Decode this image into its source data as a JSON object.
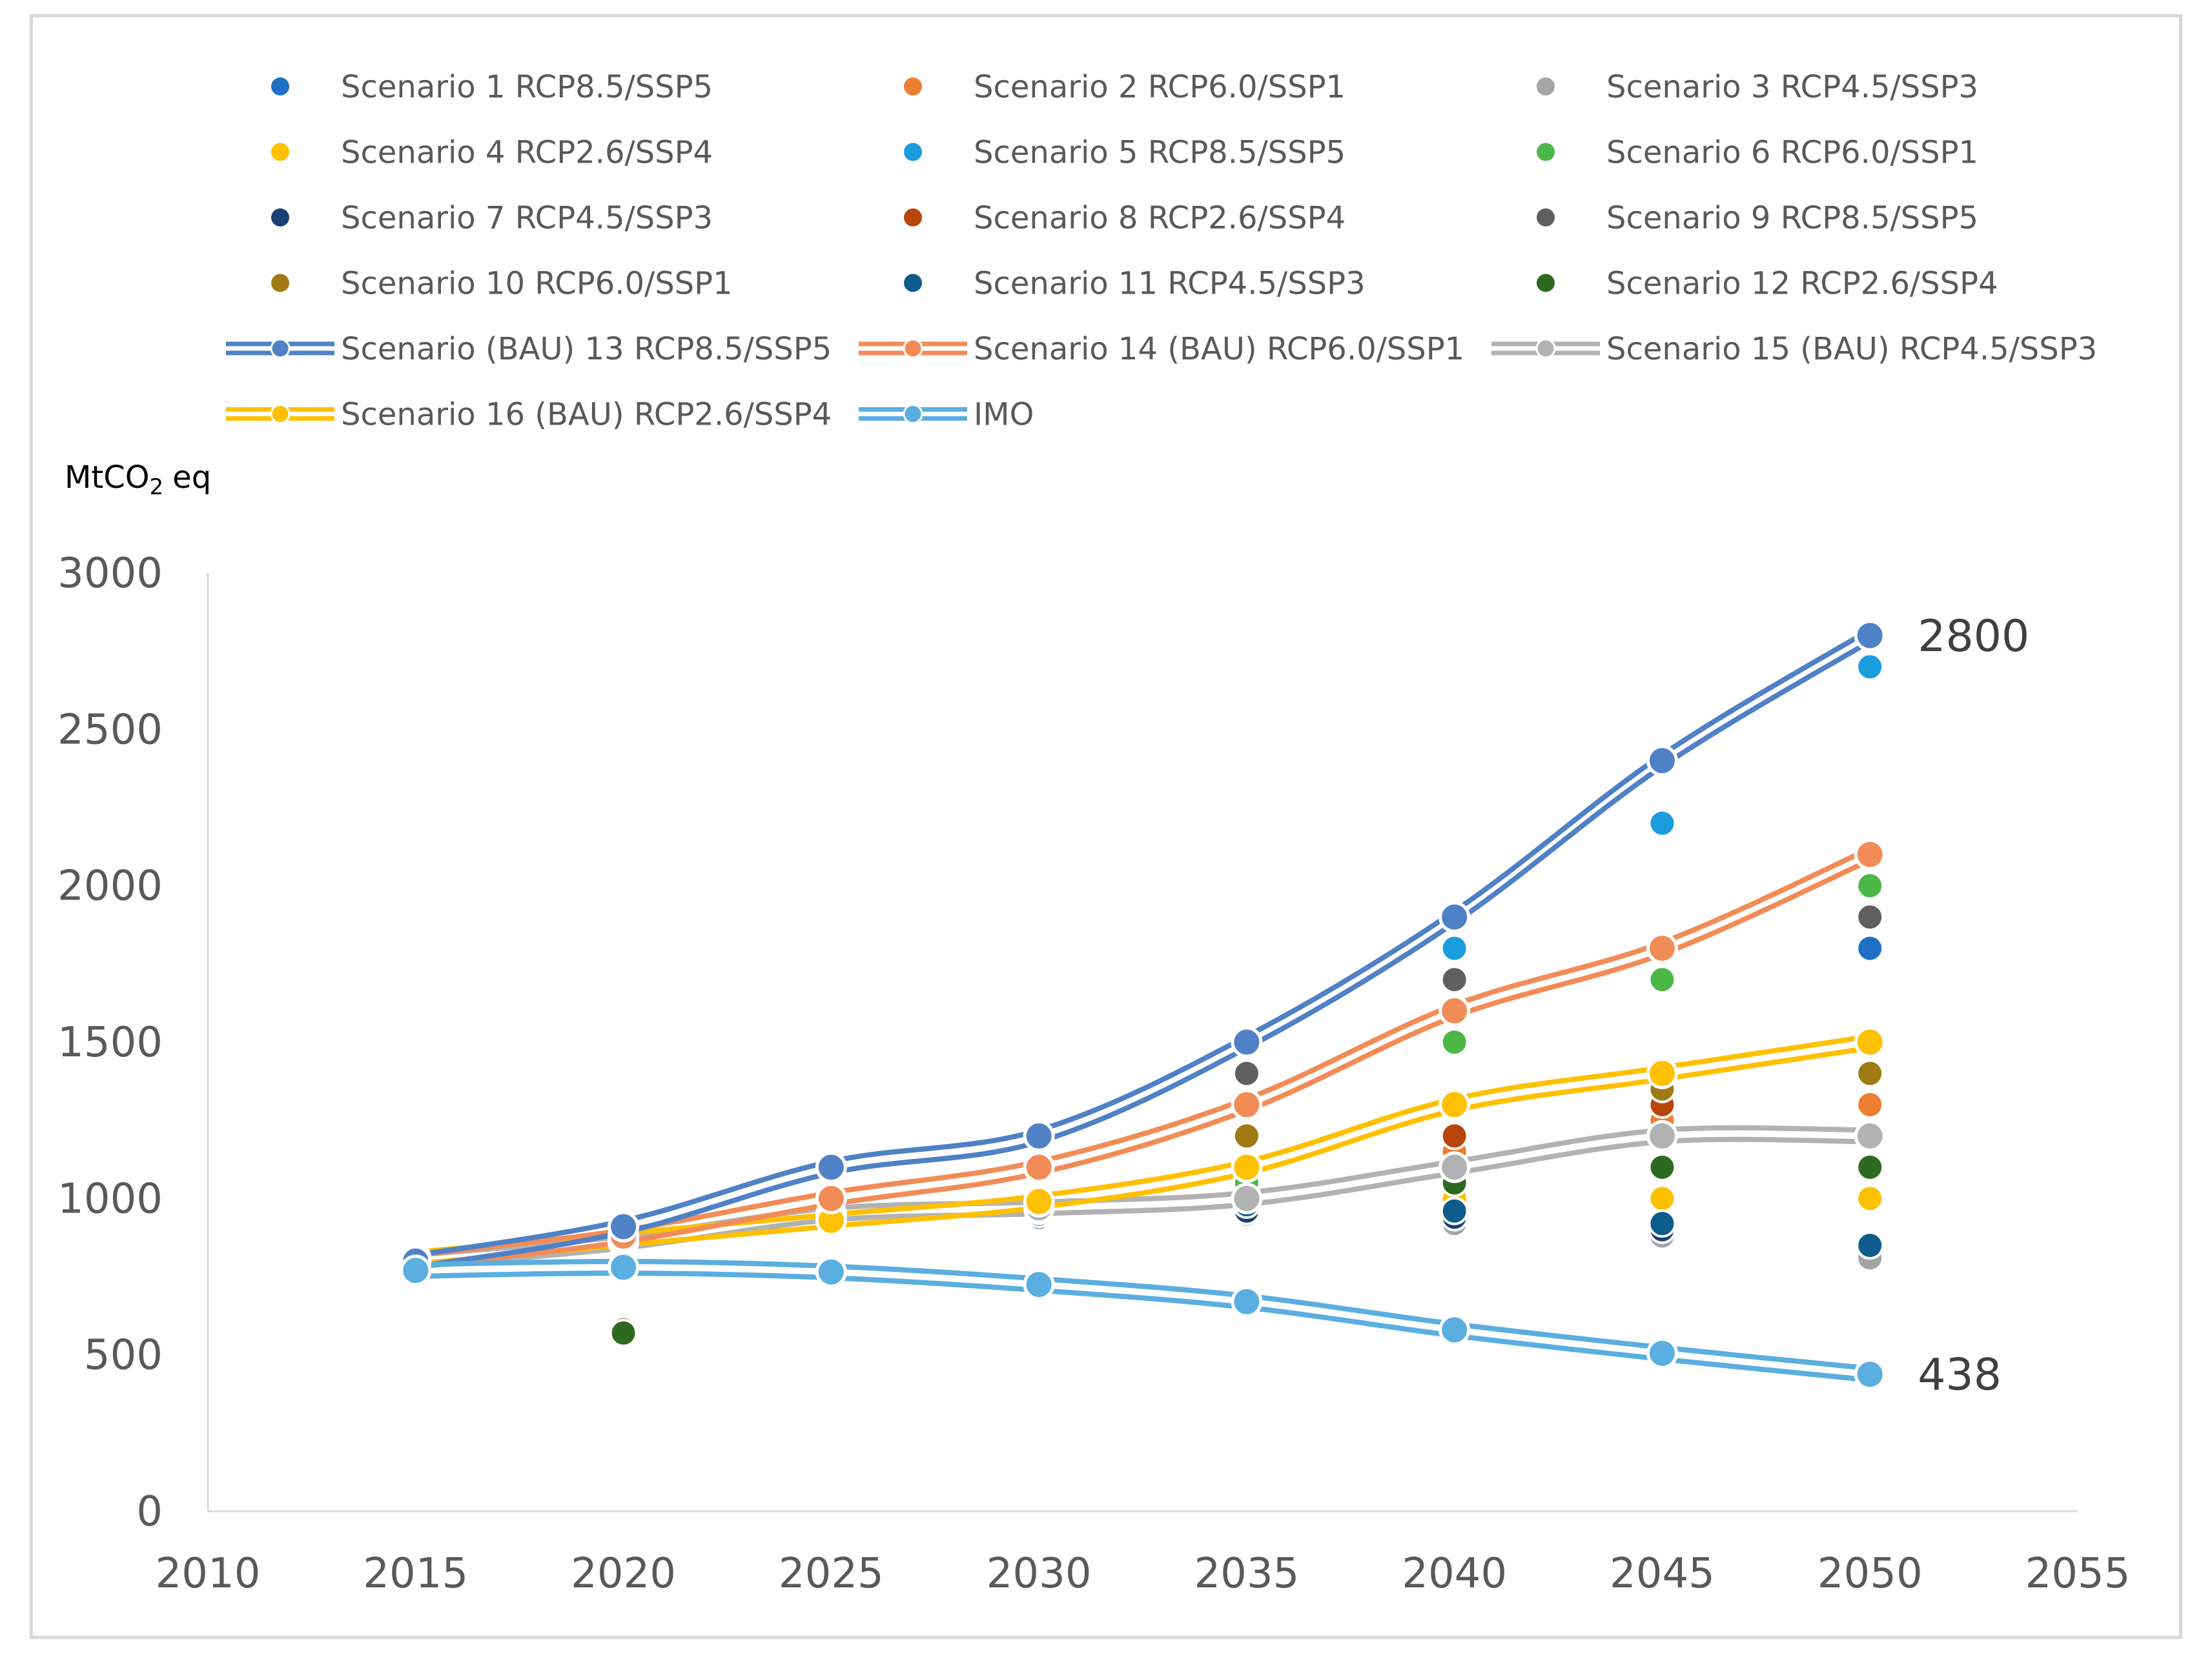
{
  "chart_data": {
    "type": "line",
    "title": "",
    "xlabel": "",
    "ylabel": "MtCO",
    "ylabel_sub": "2",
    "ylabel_suffix": "eq",
    "xlim": [
      2010,
      2055
    ],
    "ylim": [
      0,
      3000
    ],
    "x_ticks": [
      "2010",
      "2015",
      "2020",
      "2025",
      "2030",
      "2035",
      "2040",
      "2045",
      "2050",
      "2055"
    ],
    "y_ticks": [
      "0",
      "500",
      "1000",
      "1500",
      "2000",
      "2500",
      "3000"
    ],
    "grid": false,
    "legend_position": "top",
    "annotations": [
      {
        "text": "2800",
        "x": 2050,
        "y": 2800
      },
      {
        "text": "438",
        "x": 2050,
        "y": 438
      }
    ],
    "series": [
      {
        "name": "Scenario 1 RCP8.5/SSP5",
        "kind": "scatter",
        "color": "#1f6fc5",
        "points": [
          [
            2015,
            800
          ],
          [
            2020,
            870
          ],
          [
            2025,
            940
          ],
          [
            2030,
            960
          ],
          [
            2035,
            1000
          ],
          [
            2040,
            1100
          ],
          [
            2045,
            1200
          ],
          [
            2050,
            1800
          ]
        ]
      },
      {
        "name": "Scenario 2 RCP6.0/SSP1",
        "kind": "scatter",
        "color": "#ed7d31",
        "points": [
          [
            2015,
            800
          ],
          [
            2020,
            880
          ],
          [
            2025,
            950
          ],
          [
            2030,
            980
          ],
          [
            2035,
            1050
          ],
          [
            2040,
            1150
          ],
          [
            2045,
            1250
          ],
          [
            2050,
            1300
          ]
        ]
      },
      {
        "name": "Scenario 3 RCP4.5/SSP3",
        "kind": "scatter",
        "color": "#a5a5a5",
        "points": [
          [
            2015,
            800
          ],
          [
            2020,
            850
          ],
          [
            2025,
            920
          ],
          [
            2030,
            950
          ],
          [
            2035,
            950
          ],
          [
            2040,
            920
          ],
          [
            2045,
            880
          ],
          [
            2050,
            810
          ]
        ]
      },
      {
        "name": "Scenario 4 RCP2.6/SSP4",
        "kind": "scatter",
        "color": "#ffc000",
        "points": [
          [
            2015,
            810
          ],
          [
            2020,
            860
          ],
          [
            2025,
            930
          ],
          [
            2030,
            970
          ],
          [
            2035,
            1000
          ],
          [
            2040,
            1000
          ],
          [
            2045,
            1000
          ],
          [
            2050,
            1000
          ]
        ]
      },
      {
        "name": "Scenario 5 RCP8.5/SSP5",
        "kind": "scatter",
        "color": "#1b9ddd",
        "points": [
          [
            2015,
            800
          ],
          [
            2020,
            880
          ],
          [
            2025,
            960
          ],
          [
            2030,
            990
          ],
          [
            2035,
            1050
          ],
          [
            2040,
            1800
          ],
          [
            2045,
            2200
          ],
          [
            2050,
            2700
          ]
        ]
      },
      {
        "name": "Scenario 6 RCP6.0/SSP1",
        "kind": "scatter",
        "color": "#4cb848",
        "points": [
          [
            2015,
            800
          ],
          [
            2020,
            870
          ],
          [
            2025,
            950
          ],
          [
            2030,
            980
          ],
          [
            2035,
            1050
          ],
          [
            2040,
            1500
          ],
          [
            2045,
            1700
          ],
          [
            2050,
            2000
          ]
        ]
      },
      {
        "name": "Scenario 7 RCP4.5/SSP3",
        "kind": "scatter",
        "color": "#1a3f73",
        "points": [
          [
            2015,
            800
          ],
          [
            2020,
            860
          ],
          [
            2025,
            920
          ],
          [
            2030,
            940
          ],
          [
            2035,
            960
          ],
          [
            2040,
            940
          ],
          [
            2045,
            900
          ],
          [
            2050,
            850
          ]
        ]
      },
      {
        "name": "Scenario 8 RCP2.6/SSP4",
        "kind": "scatter",
        "color": "#b8460b",
        "points": [
          [
            2015,
            800
          ],
          [
            2020,
            580
          ],
          [
            2025,
            930
          ],
          [
            2030,
            960
          ],
          [
            2035,
            1000
          ],
          [
            2040,
            1200
          ],
          [
            2045,
            1300
          ],
          [
            2050,
            1400
          ]
        ]
      },
      {
        "name": "Scenario 9 RCP8.5/SSP5",
        "kind": "scatter",
        "color": "#5f5f5f",
        "points": [
          [
            2015,
            800
          ],
          [
            2020,
            880
          ],
          [
            2025,
            960
          ],
          [
            2030,
            990
          ],
          [
            2035,
            1400
          ],
          [
            2040,
            1700
          ],
          [
            2045,
            1800
          ],
          [
            2050,
            1900
          ]
        ]
      },
      {
        "name": "Scenario 10 RCP6.0/SSP1",
        "kind": "scatter",
        "color": "#a07a13",
        "points": [
          [
            2015,
            800
          ],
          [
            2020,
            870
          ],
          [
            2025,
            950
          ],
          [
            2030,
            980
          ],
          [
            2035,
            1200
          ],
          [
            2040,
            1300
          ],
          [
            2045,
            1350
          ],
          [
            2050,
            1400
          ]
        ]
      },
      {
        "name": "Scenario 11 RCP4.5/SSP3",
        "kind": "scatter",
        "color": "#0d5c8c",
        "points": [
          [
            2015,
            800
          ],
          [
            2020,
            860
          ],
          [
            2025,
            930
          ],
          [
            2030,
            950
          ],
          [
            2035,
            980
          ],
          [
            2040,
            960
          ],
          [
            2045,
            920
          ],
          [
            2050,
            850
          ]
        ]
      },
      {
        "name": "Scenario 12 RCP2.6/SSP4",
        "kind": "scatter",
        "color": "#2d6a1f",
        "points": [
          [
            2015,
            790
          ],
          [
            2020,
            570
          ],
          [
            2025,
            930
          ],
          [
            2030,
            960
          ],
          [
            2035,
            1000
          ],
          [
            2040,
            1050
          ],
          [
            2045,
            1100
          ],
          [
            2050,
            1100
          ]
        ]
      },
      {
        "name": "Scenario (BAU) 13 RCP8.5/SSP5",
        "kind": "line",
        "color": "#4f81c6",
        "points": [
          [
            2015,
            800
          ],
          [
            2020,
            910
          ],
          [
            2025,
            1100
          ],
          [
            2030,
            1200
          ],
          [
            2035,
            1500
          ],
          [
            2040,
            1900
          ],
          [
            2045,
            2400
          ],
          [
            2050,
            2800
          ]
        ]
      },
      {
        "name": "Scenario 14 (BAU) RCP6.0/SSP1",
        "kind": "line",
        "color": "#f28c57",
        "points": [
          [
            2015,
            800
          ],
          [
            2020,
            880
          ],
          [
            2025,
            1000
          ],
          [
            2030,
            1100
          ],
          [
            2035,
            1300
          ],
          [
            2040,
            1600
          ],
          [
            2045,
            1800
          ],
          [
            2050,
            2100
          ]
        ]
      },
      {
        "name": "Scenario 15 (BAU) RCP4.5/SSP3",
        "kind": "line",
        "color": "#b2b2b2",
        "points": [
          [
            2015,
            800
          ],
          [
            2020,
            860
          ],
          [
            2025,
            950
          ],
          [
            2030,
            970
          ],
          [
            2035,
            1000
          ],
          [
            2040,
            1100
          ],
          [
            2045,
            1200
          ],
          [
            2050,
            1200
          ]
        ]
      },
      {
        "name": "Scenario 16 (BAU) RCP2.6/SSP4",
        "kind": "line",
        "color": "#ffc000",
        "points": [
          [
            2015,
            810
          ],
          [
            2020,
            870
          ],
          [
            2025,
            930
          ],
          [
            2030,
            990
          ],
          [
            2035,
            1100
          ],
          [
            2040,
            1300
          ],
          [
            2045,
            1400
          ],
          [
            2050,
            1500
          ]
        ]
      },
      {
        "name": "IMO",
        "kind": "line",
        "color": "#5aaee0",
        "points": [
          [
            2015,
            770
          ],
          [
            2020,
            780
          ],
          [
            2025,
            765
          ],
          [
            2030,
            725
          ],
          [
            2035,
            670
          ],
          [
            2040,
            580
          ],
          [
            2045,
            505
          ],
          [
            2050,
            438
          ]
        ]
      }
    ]
  }
}
